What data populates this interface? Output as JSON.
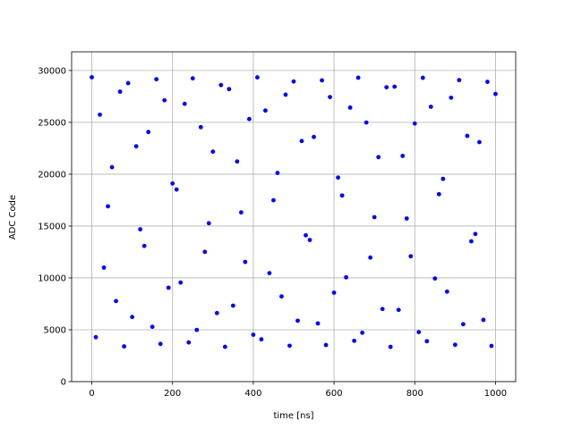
{
  "chart_data": {
    "type": "scatter",
    "xlabel": "time [ns]",
    "ylabel": "ADC Code",
    "color": "#0000ff",
    "grid": true,
    "xlim": [
      -50,
      1050
    ],
    "ylim": [
      0,
      31800
    ],
    "xticks": [
      0,
      200,
      400,
      600,
      800,
      1000
    ],
    "yticks": [
      0,
      5000,
      10000,
      15000,
      20000,
      25000,
      30000
    ],
    "x": [
      0,
      10,
      20,
      30,
      40,
      50,
      60,
      70,
      80,
      90,
      100,
      110,
      120,
      130,
      140,
      150,
      160,
      170,
      180,
      190,
      200,
      210,
      220,
      230,
      240,
      250,
      260,
      270,
      280,
      290,
      300,
      310,
      320,
      330,
      340,
      350,
      360,
      370,
      380,
      390,
      400,
      410,
      420,
      430,
      440,
      450,
      460,
      470,
      480,
      490,
      500,
      510,
      520,
      530,
      540,
      550,
      560,
      570,
      580,
      590,
      600,
      610,
      620,
      630,
      640,
      650,
      660,
      670,
      680,
      690,
      700,
      710,
      720,
      730,
      740,
      750,
      760,
      770,
      780,
      790,
      800,
      810,
      820,
      830,
      840,
      850,
      860,
      870,
      880,
      890,
      900,
      910,
      920,
      930,
      940,
      950,
      960,
      970,
      980,
      990,
      1000
    ],
    "values": [
      29350,
      4286,
      25736,
      10994,
      16905,
      20679,
      7770,
      27959,
      3397,
      28778,
      6236,
      22694,
      14686,
      13087,
      24072,
      5287,
      29160,
      3636,
      27127,
      9057,
      19106,
      18529,
      9551,
      26789,
      3779,
      29246,
      4988,
      24540,
      12515,
      15273,
      22174,
      6613,
      28596,
      3360,
      28206,
      7328,
      21225,
      16317,
      11540,
      25320,
      4520,
      29337,
      4078,
      26139,
      10461,
      17493,
      20120,
      8212,
      27673,
      3460,
      28942,
      5872,
      23201,
      14106,
      13659,
      23591,
      5612,
      29051,
      3532,
      27439,
      8576,
      19678,
      17946,
      10058,
      26425,
      3935,
      29308,
      4715,
      24982,
      11961,
      15860,
      21648,
      7003,
      28388,
      3350,
      28440,
      6918,
      21767,
      15730,
      12086,
      24887,
      4773,
      29297,
      3896,
      26503,
      9945,
      18076,
      19552,
      8680,
      27374,
      3550,
      29074,
      5534,
      23695,
      13530,
      14236,
      23094,
      5950,
      28908,
      3445,
      27738
    ]
  }
}
